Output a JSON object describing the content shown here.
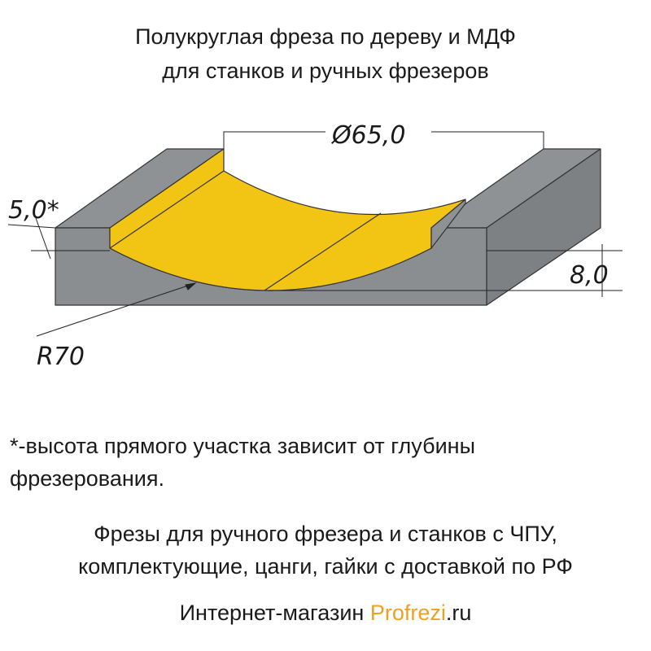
{
  "header": {
    "title_lines": [
      "Полукруглая фреза по дереву и МДФ",
      "для станков и ручных фрезеров"
    ]
  },
  "dimensions": {
    "diameter": "Ø65,0",
    "straight_height": "5,0*",
    "depth": "8,0",
    "radius": "R70"
  },
  "footnote": [
    "*-высота прямого участка зависит от глубины",
    "фрезерования."
  ],
  "promo": [
    "Фрезы для ручного фрезера и станков с ЧПУ,",
    "комплектующие, цанги, гайки с доставкой по РФ"
  ],
  "shop": {
    "prefix": "Интернет-магазин",
    "brand_pro": "Pro",
    "brand_frezi": "frezi",
    "domain": ".ru"
  }
}
